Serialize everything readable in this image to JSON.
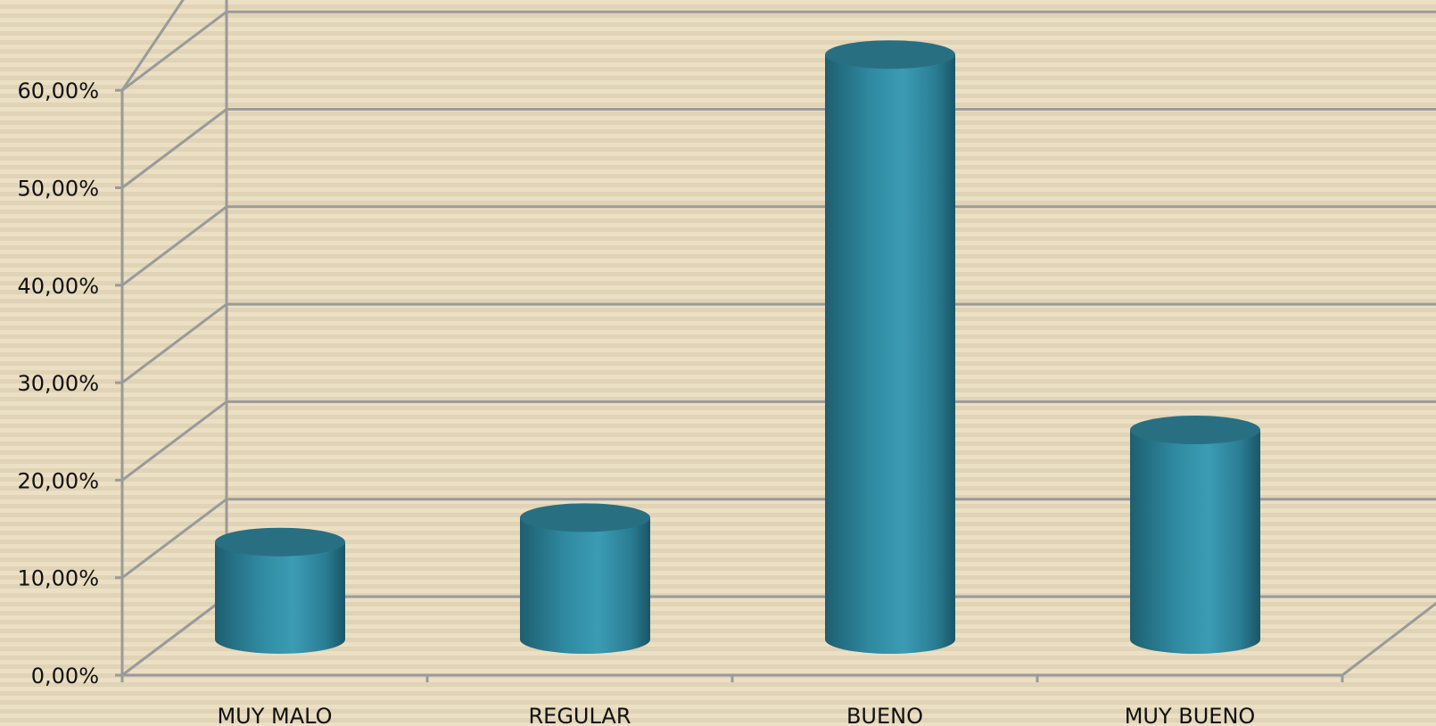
{
  "chart_data": {
    "type": "bar",
    "style": "3d-cylinder",
    "categories": [
      "MUY MALO",
      "REGULAR",
      "BUENO",
      "MUY BUENO"
    ],
    "values": [
      10.0,
      12.5,
      60.0,
      21.5
    ],
    "y_ticks": [
      "0,00%",
      "10,00%",
      "20,00%",
      "30,00%",
      "40,00%",
      "50,00%",
      "60,00%"
    ],
    "ylim": [
      0,
      60
    ],
    "grid": true,
    "legend": "none",
    "colors": {
      "bar": "#3290a8",
      "bar_dark": "#1f6678",
      "bar_top": "#296f82",
      "grid": "#9a9a9a",
      "background": "#ebdfc4"
    }
  }
}
